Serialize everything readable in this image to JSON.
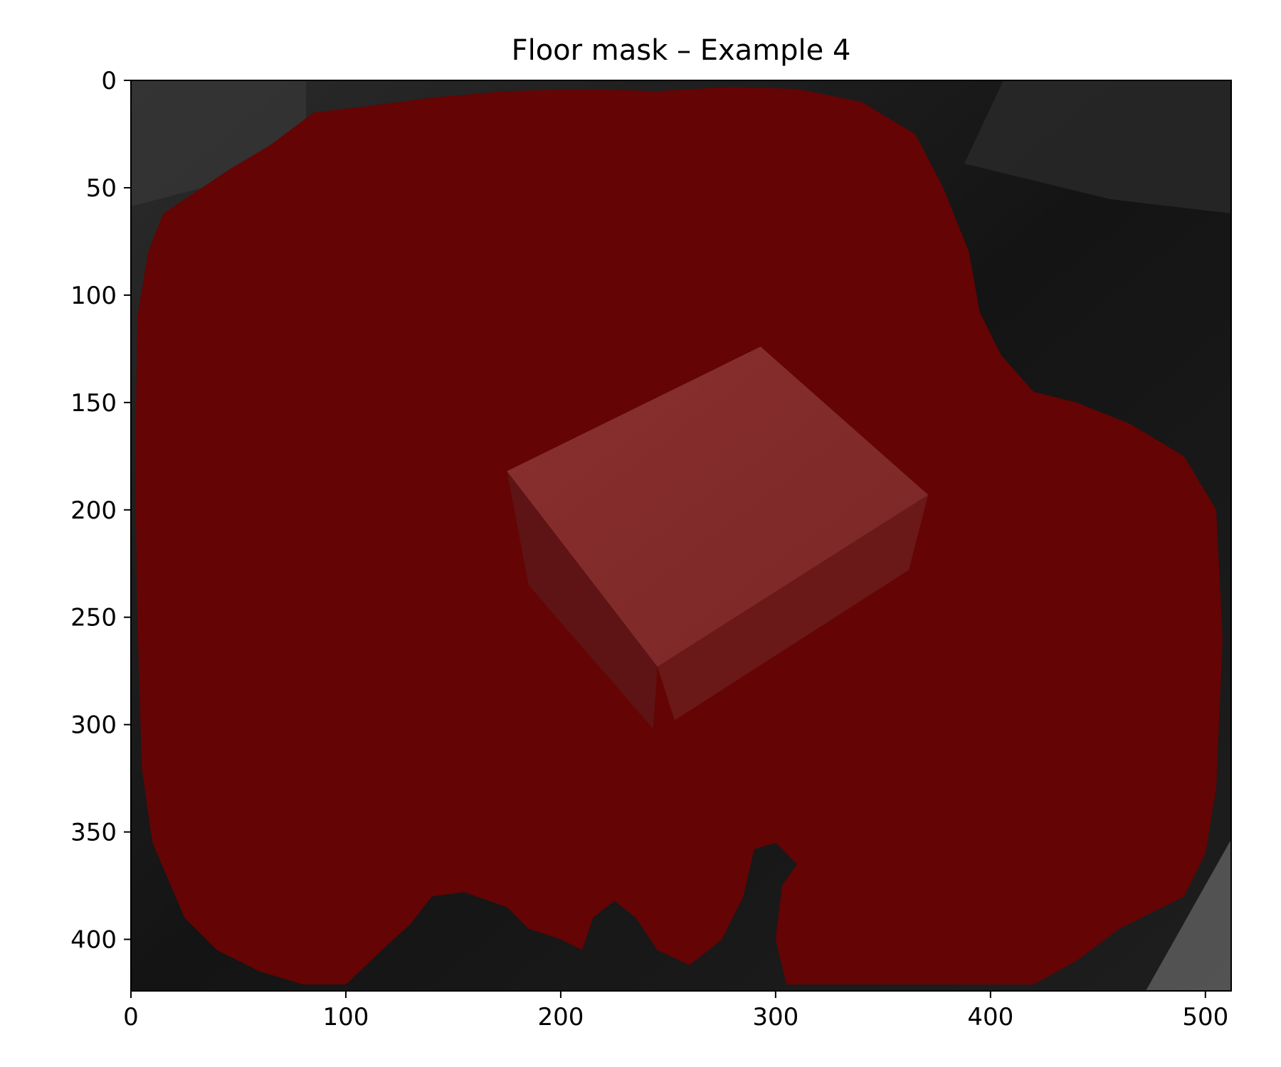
{
  "chart_data": {
    "type": "heatmap",
    "title": "Floor mask – Example 4",
    "xlabel": "",
    "ylabel": "",
    "xlim": [
      0,
      512
    ],
    "ylim": [
      424,
      0
    ],
    "x_ticks": [
      0,
      100,
      200,
      300,
      400,
      500
    ],
    "y_ticks": [
      0,
      50,
      100,
      150,
      200,
      250,
      300,
      350,
      400
    ],
    "image_size": [
      512,
      424
    ],
    "overlay_color": "#8b0000",
    "background": "grayscale camera image (dark room, box on floor)",
    "grid": false,
    "legend": "none",
    "mask_region": {
      "label": "floor",
      "boundary": [
        [
          30,
          52
        ],
        [
          45,
          42
        ],
        [
          65,
          30
        ],
        [
          85,
          15
        ],
        [
          110,
          12
        ],
        [
          140,
          8
        ],
        [
          175,
          5
        ],
        [
          210,
          4
        ],
        [
          245,
          5
        ],
        [
          280,
          3
        ],
        [
          310,
          4
        ],
        [
          340,
          10
        ],
        [
          365,
          25
        ],
        [
          378,
          50
        ],
        [
          390,
          80
        ],
        [
          395,
          108
        ],
        [
          405,
          128
        ],
        [
          420,
          145
        ],
        [
          440,
          150
        ],
        [
          465,
          160
        ],
        [
          490,
          175
        ],
        [
          505,
          200
        ],
        [
          508,
          260
        ],
        [
          505,
          330
        ],
        [
          500,
          360
        ],
        [
          490,
          380
        ],
        [
          460,
          395
        ],
        [
          440,
          410
        ],
        [
          420,
          421
        ],
        [
          400,
          421
        ],
        [
          370,
          421
        ],
        [
          330,
          421
        ],
        [
          305,
          421
        ],
        [
          300,
          400
        ],
        [
          303,
          375
        ],
        [
          310,
          365
        ],
        [
          300,
          355
        ],
        [
          290,
          358
        ],
        [
          285,
          380
        ],
        [
          275,
          400
        ],
        [
          260,
          412
        ],
        [
          245,
          405
        ],
        [
          235,
          390
        ],
        [
          225,
          382
        ],
        [
          215,
          390
        ],
        [
          210,
          405
        ],
        [
          200,
          400
        ],
        [
          185,
          395
        ],
        [
          175,
          385
        ],
        [
          155,
          378
        ],
        [
          140,
          380
        ],
        [
          130,
          393
        ],
        [
          120,
          402
        ],
        [
          100,
          421
        ],
        [
          80,
          421
        ],
        [
          60,
          415
        ],
        [
          40,
          405
        ],
        [
          25,
          390
        ],
        [
          10,
          355
        ],
        [
          5,
          320
        ],
        [
          3,
          250
        ],
        [
          2,
          180
        ],
        [
          3,
          110
        ],
        [
          8,
          80
        ],
        [
          15,
          62
        ]
      ]
    },
    "box_top_face": [
      [
        175,
        182
      ],
      [
        293,
        124
      ],
      [
        371,
        193
      ],
      [
        245,
        273
      ]
    ],
    "box_front_face": [
      [
        175,
        182
      ],
      [
        245,
        273
      ],
      [
        243,
        302
      ],
      [
        185,
        235
      ]
    ],
    "box_side_face": [
      [
        245,
        273
      ],
      [
        371,
        193
      ],
      [
        362,
        228
      ],
      [
        253,
        298
      ]
    ]
  }
}
